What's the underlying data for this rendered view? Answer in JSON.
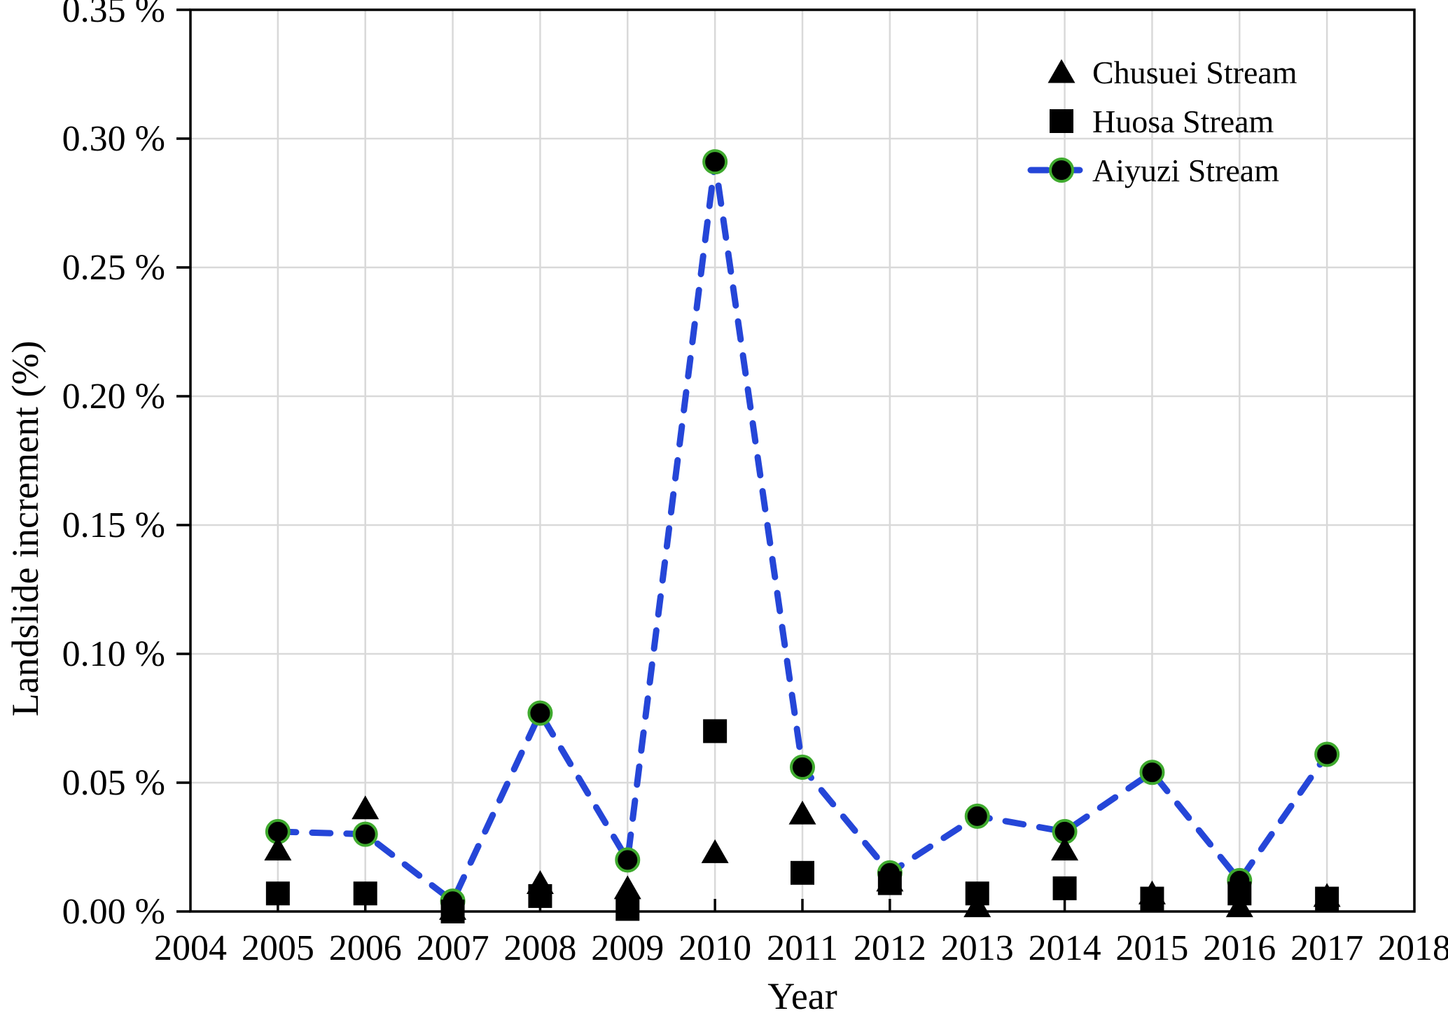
{
  "axes": {
    "x_title": "Year",
    "y_title": "Landslide increment (%)",
    "x_tick_labels": [
      "2004",
      "2005",
      "2006",
      "2007",
      "2008",
      "2009",
      "2010",
      "2011",
      "2012",
      "2013",
      "2014",
      "2015",
      "2016",
      "2017",
      "2018"
    ],
    "y_tick_labels": [
      "0.00 %",
      "0.05 %",
      "0.10 %",
      "0.15 %",
      "0.20 %",
      "0.25 %",
      "0.30 %",
      "0.35 %"
    ]
  },
  "legend": {
    "items": [
      {
        "label": "Chusuei Stream",
        "marker": "triangle"
      },
      {
        "label": "Huosa Stream",
        "marker": "square"
      },
      {
        "label": "Aiyuzi Stream",
        "marker": "circle-dashed-line"
      }
    ]
  },
  "colors": {
    "marker_fill": "#000000",
    "marker_edge_green": "#3faa2e",
    "line_dash_blue": "#2546d8",
    "grid": "#d9d9d9",
    "axis": "#000000",
    "background": "#ffffff"
  },
  "chart_data": {
    "type": "line",
    "title": "",
    "xlabel": "Year",
    "ylabel": "Landslide increment (%)",
    "x": [
      2005,
      2006,
      2007,
      2008,
      2009,
      2010,
      2011,
      2012,
      2013,
      2014,
      2015,
      2016,
      2017
    ],
    "xlim": [
      2004,
      2018
    ],
    "ylim": [
      0,
      0.35
    ],
    "x_tick_step": 1,
    "y_tick_step": 0.05,
    "grid": true,
    "legend_position": "top-right",
    "series": [
      {
        "name": "Chusuei Stream",
        "marker": "triangle",
        "line": "none",
        "color": "#000000",
        "values": [
          0.024,
          0.04,
          0.001,
          0.011,
          0.009,
          0.023,
          0.038,
          0.012,
          0.002,
          0.024,
          0.007,
          0.002,
          0.006
        ]
      },
      {
        "name": "Huosa Stream",
        "marker": "square",
        "line": "none",
        "color": "#000000",
        "values": [
          0.007,
          0.007,
          0.0,
          0.006,
          0.001,
          0.07,
          0.015,
          0.011,
          0.007,
          0.009,
          0.005,
          0.007,
          0.005
        ]
      },
      {
        "name": "Aiyuzi Stream",
        "marker": "circle",
        "line": "dashed",
        "color": "#000000",
        "line_color": "#2546d8",
        "marker_edge_color": "#3faa2e",
        "values": [
          0.031,
          0.03,
          0.004,
          0.077,
          0.02,
          0.291,
          0.056,
          0.015,
          0.037,
          0.031,
          0.054,
          0.012,
          0.061
        ]
      }
    ]
  }
}
